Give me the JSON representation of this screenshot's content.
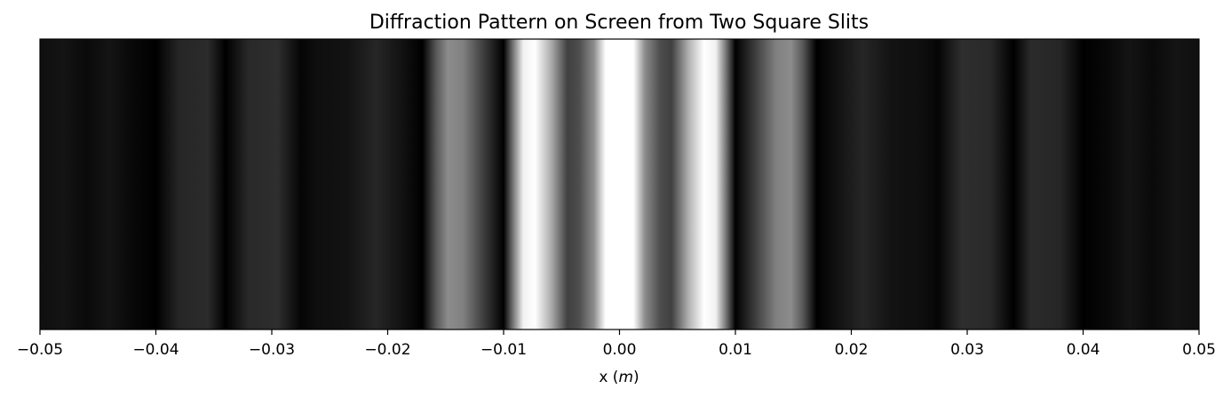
{
  "chart_data": {
    "type": "heatmap",
    "title": "Diffraction Pattern on Screen from Two Square Slits",
    "xlabel": "x (m)",
    "xlabel_parts": [
      "x (",
      "m",
      ")"
    ],
    "ylabel": "",
    "xlim": [
      -0.05,
      0.05
    ],
    "x_ticks": [
      -0.05,
      -0.04,
      -0.03,
      -0.02,
      -0.01,
      0.0,
      0.01,
      0.02,
      0.03,
      0.04,
      0.05
    ],
    "x_tick_labels": [
      "−0.05",
      "−0.04",
      "−0.03",
      "−0.02",
      "−0.01",
      "0.00",
      "0.01",
      "0.02",
      "0.03",
      "0.04",
      "0.05"
    ],
    "y_ticks": [],
    "colormap": "gray",
    "intensity_profile": {
      "x": [
        -0.05,
        -0.048,
        -0.046,
        -0.044,
        -0.042,
        -0.04,
        -0.038,
        -0.0355,
        -0.034,
        -0.032,
        -0.0295,
        -0.0275,
        -0.026,
        -0.0235,
        -0.021,
        -0.0185,
        -0.017,
        -0.0158,
        -0.0148,
        -0.0135,
        -0.0118,
        -0.01,
        -0.0092,
        -0.0083,
        -0.0073,
        -0.006,
        -0.0045,
        -0.0035,
        -0.0022,
        -0.0012,
        0.0,
        0.0012,
        0.0022,
        0.0035,
        0.0045,
        0.006,
        0.0073,
        0.0083,
        0.0092,
        0.01,
        0.0118,
        0.0135,
        0.0148,
        0.0158,
        0.017,
        0.0185,
        0.021,
        0.0235,
        0.026,
        0.0275,
        0.0295,
        0.032,
        0.034,
        0.0355,
        0.038,
        0.04,
        0.042,
        0.044,
        0.046,
        0.048,
        0.05
      ],
      "intensity": [
        0.06,
        0.08,
        0.04,
        0.08,
        0.03,
        0.0,
        0.15,
        0.17,
        0.0,
        0.16,
        0.18,
        0.02,
        0.06,
        0.07,
        0.15,
        0.06,
        0.0,
        0.35,
        0.55,
        0.5,
        0.25,
        0.0,
        0.45,
        0.95,
        1.0,
        0.7,
        0.25,
        0.3,
        0.55,
        1.0,
        1.0,
        1.0,
        0.55,
        0.3,
        0.25,
        0.7,
        1.0,
        0.95,
        0.45,
        0.0,
        0.25,
        0.5,
        0.55,
        0.35,
        0.0,
        0.06,
        0.15,
        0.07,
        0.06,
        0.02,
        0.18,
        0.16,
        0.0,
        0.17,
        0.15,
        0.0,
        0.03,
        0.08,
        0.04,
        0.08,
        0.06
      ]
    },
    "colors": {
      "axis": "#000000",
      "background": "#ffffff"
    }
  }
}
